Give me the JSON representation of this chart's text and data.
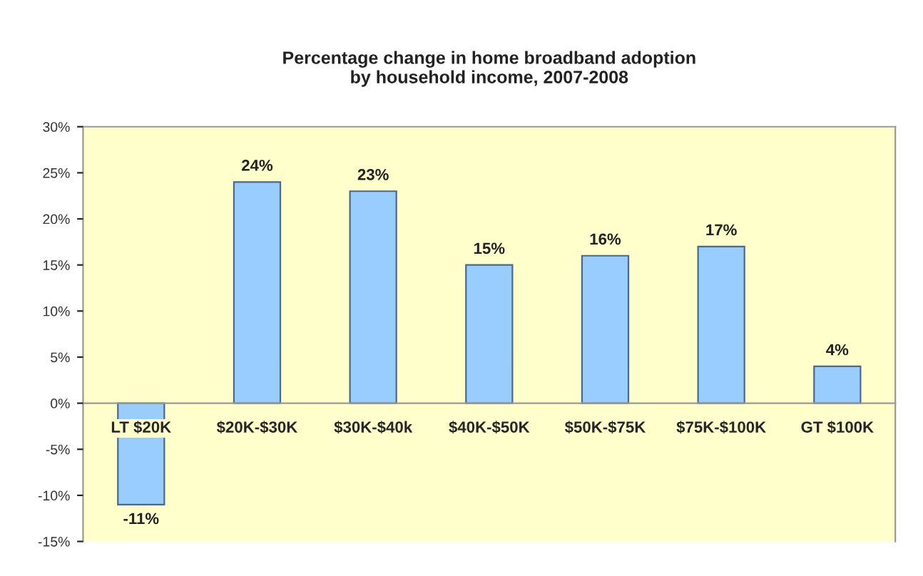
{
  "chart_data": {
    "type": "bar",
    "title": "Percentage change in home broadband adoption\nby household income, 2007-2008",
    "categories": [
      "LT $20K",
      "$20K-$30K",
      "$30K-$40k",
      "$40K-$50K",
      "$50K-$75K",
      "$75K-$100K",
      "GT $100K"
    ],
    "values": [
      -11,
      24,
      23,
      15,
      16,
      17,
      4
    ],
    "value_labels": [
      "-11%",
      "24%",
      "23%",
      "15%",
      "16%",
      "17%",
      "4%"
    ],
    "color": "#99ccff",
    "ylim": [
      -15,
      30
    ],
    "yticks": [
      {
        "value": -15,
        "label": "-15%"
      },
      {
        "value": -10,
        "label": "-10%"
      },
      {
        "value": -5,
        "label": "-5%"
      },
      {
        "value": 0,
        "label": "0%"
      },
      {
        "value": 5,
        "label": "5%"
      },
      {
        "value": 10,
        "label": "10%"
      },
      {
        "value": 15,
        "label": "15%"
      },
      {
        "value": 20,
        "label": "20%"
      },
      {
        "value": 25,
        "label": "25%"
      },
      {
        "value": 30,
        "label": "30%"
      }
    ],
    "grid": false,
    "legend": false
  }
}
